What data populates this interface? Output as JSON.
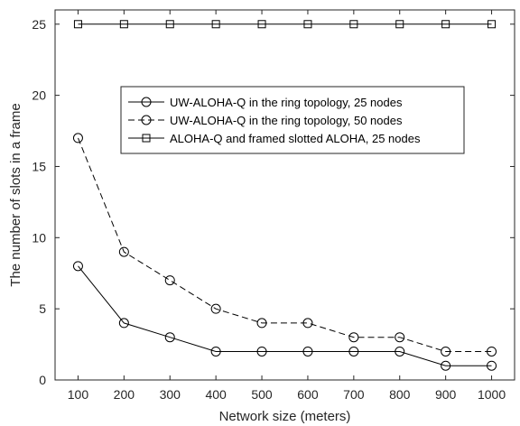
{
  "chart_data": {
    "type": "line",
    "title": "",
    "xlabel": "Network size (meters)",
    "ylabel": "The number of slots in a frame",
    "x": [
      100,
      200,
      300,
      400,
      500,
      600,
      700,
      800,
      900,
      1000
    ],
    "xlim": [
      50,
      1050
    ],
    "ylim": [
      0,
      26
    ],
    "xticks": [
      100,
      200,
      300,
      400,
      500,
      600,
      700,
      800,
      900,
      1000
    ],
    "yticks": [
      0,
      5,
      10,
      15,
      20,
      25
    ],
    "grid": false,
    "legend_position": "upper-center",
    "series": [
      {
        "name": "UW-ALOHA-Q in the ring topology, 25 nodes",
        "values": [
          8,
          4,
          3,
          2,
          2,
          2,
          2,
          2,
          1,
          1
        ],
        "line": "solid",
        "marker": "circle",
        "color": "#000000"
      },
      {
        "name": "UW-ALOHA-Q in the ring topology, 50 nodes",
        "values": [
          17,
          9,
          7,
          5,
          4,
          4,
          3,
          3,
          2,
          2
        ],
        "line": "dashed",
        "marker": "circle",
        "color": "#000000"
      },
      {
        "name": "ALOHA-Q and framed slotted ALOHA, 25 nodes",
        "values": [
          25,
          25,
          25,
          25,
          25,
          25,
          25,
          25,
          25,
          25
        ],
        "line": "solid",
        "marker": "square",
        "color": "#000000"
      }
    ]
  }
}
